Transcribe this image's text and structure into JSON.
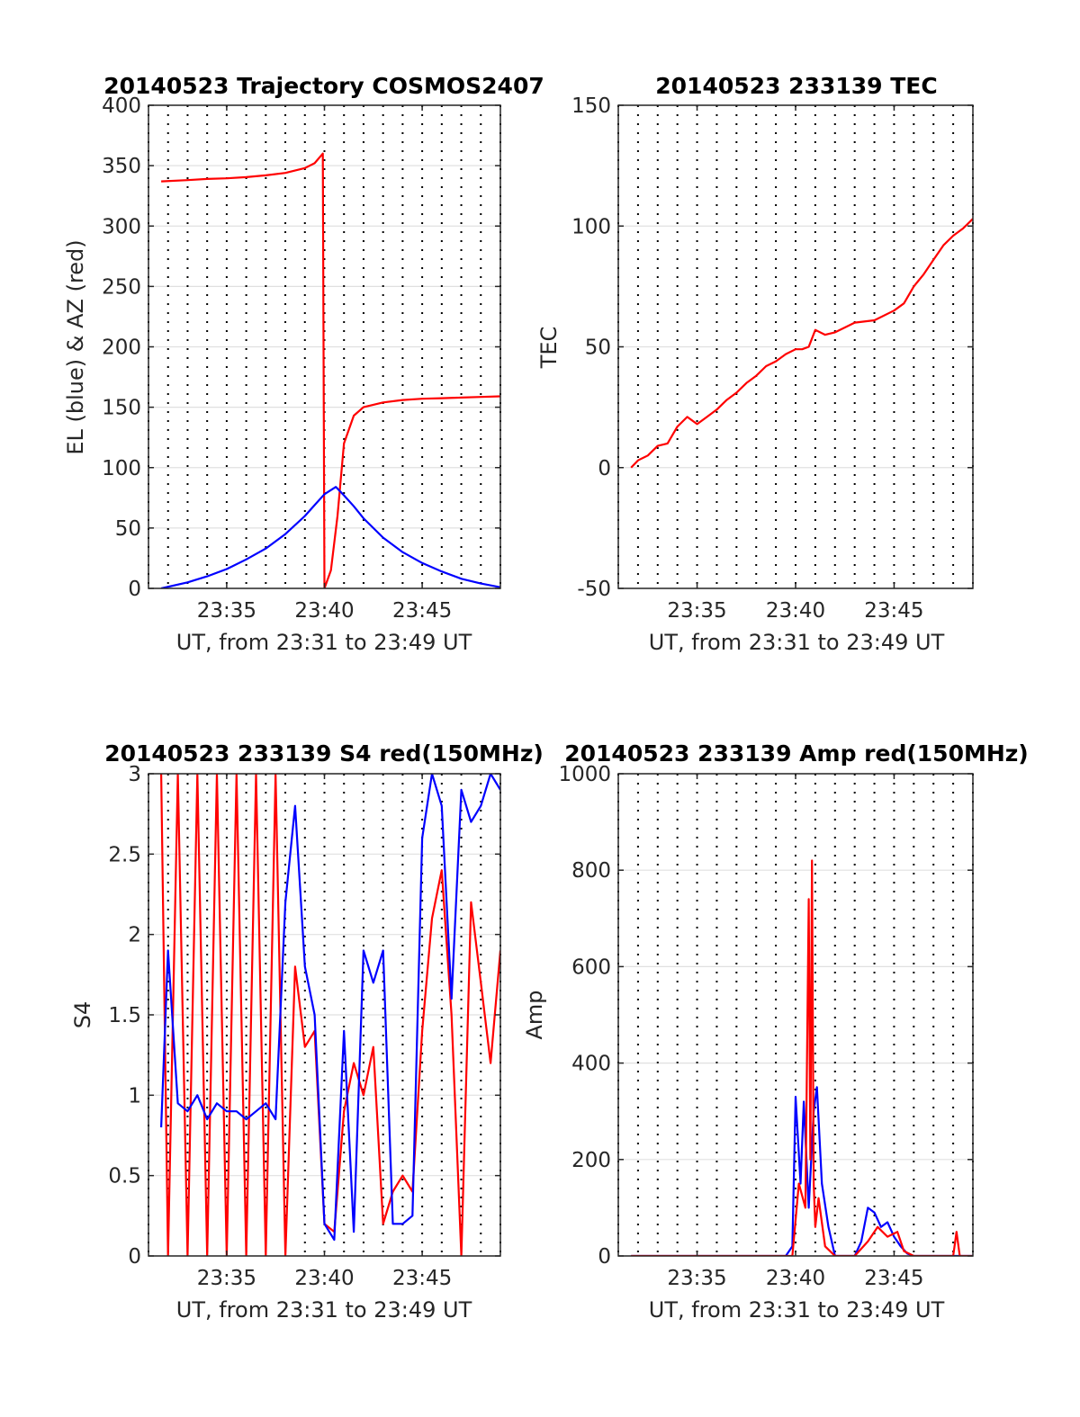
{
  "colors": {
    "el": "#0000ff",
    "az": "#ff0000",
    "axis": "#262626",
    "grid": "#e0e0e0",
    "vgrid": "#000000"
  },
  "chart_data": [
    {
      "id": "trajectory",
      "type": "line",
      "title": "20140523 Trajectory COSMOS2407",
      "xlabel": "UT, from 23:31 to 23:49 UT",
      "ylabel": "EL (blue) & AZ (red)",
      "xlim": [
        "23:31",
        "23:49"
      ],
      "ylim": [
        0,
        400
      ],
      "yticks": [
        "0",
        "50",
        "100",
        "150",
        "200",
        "250",
        "300",
        "350",
        "400"
      ],
      "xticks": [
        "23:35",
        "23:40",
        "23:45"
      ],
      "grid": true,
      "series": [
        {
          "color": "red",
          "x": [
            "23:31:39",
            "23:33",
            "23:34",
            "23:35",
            "23:36",
            "23:37",
            "23:38",
            "23:39",
            "23:39:30",
            "23:39:55",
            "23:40:00",
            "23:40:20",
            "23:40:40",
            "23:41:00",
            "23:41:30",
            "23:42",
            "23:43",
            "23:44",
            "23:45",
            "23:46",
            "23:47",
            "23:48",
            "23:49"
          ],
          "y": [
            337,
            338,
            339,
            339.5,
            340.5,
            342,
            344,
            348,
            352,
            360,
            0,
            15,
            60,
            120,
            143,
            150,
            154,
            156,
            157,
            157.5,
            158,
            158.5,
            159
          ]
        },
        {
          "color": "blue",
          "x": [
            "23:31:39",
            "23:33",
            "23:34",
            "23:35",
            "23:36",
            "23:37",
            "23:38",
            "23:39",
            "23:39:30",
            "23:40",
            "23:40:35",
            "23:41",
            "23:41:30",
            "23:42",
            "23:43",
            "23:44",
            "23:45",
            "23:46",
            "23:47",
            "23:48",
            "23:49"
          ],
          "y": [
            0,
            5,
            10,
            16,
            24,
            33,
            45,
            60,
            69,
            78,
            84,
            77,
            68,
            58,
            42,
            30,
            21,
            14,
            8,
            4,
            1
          ]
        }
      ]
    },
    {
      "id": "tec",
      "type": "line",
      "title": "20140523 233139 TEC",
      "xlabel": "UT, from 23:31 to 23:49 UT",
      "ylabel": "TEC",
      "xlim": [
        "23:31",
        "23:49"
      ],
      "ylim": [
        -50,
        150
      ],
      "yticks": [
        "-50",
        "0",
        "50",
        "100",
        "150"
      ],
      "xticks": [
        "23:35",
        "23:40",
        "23:45"
      ],
      "grid": true,
      "series": [
        {
          "color": "red",
          "x": [
            "23:31:39",
            "23:32",
            "23:32:30",
            "23:33",
            "23:33:30",
            "23:34",
            "23:34:30",
            "23:35",
            "23:35:30",
            "23:36",
            "23:36:30",
            "23:37",
            "23:37:30",
            "23:38",
            "23:38:30",
            "23:39",
            "23:39:30",
            "23:40",
            "23:40:20",
            "23:40:40",
            "23:41",
            "23:41:30",
            "23:42",
            "23:43",
            "23:44",
            "23:45",
            "23:45:30",
            "23:46",
            "23:46:30",
            "23:47",
            "23:47:30",
            "23:48",
            "23:48:30",
            "23:49"
          ],
          "y": [
            0,
            3,
            5,
            9,
            10,
            17,
            21,
            18,
            21,
            24,
            28,
            31,
            35,
            38,
            42,
            44,
            47,
            49,
            49,
            50,
            57,
            55,
            56,
            60,
            61,
            65,
            68,
            75,
            80,
            86,
            92,
            96,
            99,
            103
          ]
        }
      ]
    },
    {
      "id": "s4",
      "type": "line",
      "title": "20140523 233139 S4 red(150MHz)",
      "xlabel": "UT, from 23:31 to 23:49 UT",
      "ylabel": "S4",
      "xlim": [
        "23:31",
        "23:49"
      ],
      "ylim": [
        0,
        3
      ],
      "yticks": [
        "0",
        "0.5",
        "1",
        "1.5",
        "2",
        "2.5",
        "3"
      ],
      "xticks": [
        "23:35",
        "23:40",
        "23:45"
      ],
      "grid": true,
      "series": [
        {
          "color": "red",
          "x": [
            "23:31:39",
            "23:32",
            "23:32:30",
            "23:33",
            "23:33:30",
            "23:34",
            "23:34:30",
            "23:35",
            "23:35:30",
            "23:36",
            "23:36:30",
            "23:37",
            "23:37:30",
            "23:38",
            "23:38:30",
            "23:39",
            "23:39:30",
            "23:40",
            "23:40:30",
            "23:41",
            "23:41:30",
            "23:42",
            "23:42:30",
            "23:43",
            "23:43:30",
            "23:44",
            "23:44:30",
            "23:45",
            "23:45:30",
            "23:46",
            "23:46:30",
            "23:47",
            "23:47:30",
            "23:48",
            "23:48:30",
            "23:49"
          ],
          "y": [
            3,
            0,
            3,
            0,
            3,
            0,
            3,
            0,
            3,
            0,
            3,
            0,
            3,
            0,
            1.8,
            1.3,
            1.4,
            0.2,
            0.15,
            0.9,
            1.2,
            1.0,
            1.3,
            0.2,
            0.4,
            0.5,
            0.4,
            1.4,
            2.1,
            2.4,
            1.5,
            0,
            2.2,
            1.7,
            1.2,
            1.9
          ]
        },
        {
          "color": "blue",
          "x": [
            "23:31:39",
            "23:32",
            "23:32:30",
            "23:33",
            "23:33:30",
            "23:34",
            "23:34:30",
            "23:35",
            "23:35:30",
            "23:36",
            "23:36:30",
            "23:37",
            "23:37:30",
            "23:38",
            "23:38:30",
            "23:39",
            "23:39:30",
            "23:40",
            "23:40:30",
            "23:41",
            "23:41:30",
            "23:42",
            "23:42:30",
            "23:43",
            "23:43:30",
            "23:44",
            "23:44:30",
            "23:45",
            "23:45:30",
            "23:46",
            "23:46:30",
            "23:47",
            "23:47:30",
            "23:48",
            "23:48:30",
            "23:49"
          ],
          "y": [
            0.8,
            1.9,
            0.95,
            0.9,
            1.0,
            0.85,
            0.95,
            0.9,
            0.9,
            0.85,
            0.9,
            0.95,
            0.85,
            2.2,
            2.8,
            1.8,
            1.5,
            0.2,
            0.1,
            1.4,
            0.15,
            1.9,
            1.7,
            1.9,
            0.2,
            0.2,
            0.25,
            2.6,
            3.0,
            2.8,
            1.6,
            2.9,
            2.7,
            2.8,
            3.0,
            2.9
          ]
        }
      ]
    },
    {
      "id": "amp",
      "type": "line",
      "title": "20140523 233139 Amp red(150MHz)",
      "xlabel": "UT, from 23:31 to 23:49 UT",
      "ylabel": "Amp",
      "xlim": [
        "23:31",
        "23:49"
      ],
      "ylim": [
        0,
        1000
      ],
      "yticks": [
        "0",
        "200",
        "400",
        "600",
        "800",
        "1000"
      ],
      "xticks": [
        "23:35",
        "23:40",
        "23:45"
      ],
      "grid": true,
      "series": [
        {
          "color": "blue",
          "x": [
            "23:31:39",
            "23:35",
            "23:39:30",
            "23:39:50",
            "23:40:00",
            "23:40:15",
            "23:40:25",
            "23:40:40",
            "23:40:55",
            "23:41:05",
            "23:41:20",
            "23:41:40",
            "23:42",
            "23:43",
            "23:43:20",
            "23:43:40",
            "23:44:00",
            "23:44:20",
            "23:44:40",
            "23:45:00",
            "23:45:20",
            "23:45:40",
            "23:46",
            "23:47",
            "23:48",
            "23:49"
          ],
          "y": [
            0,
            0,
            0,
            20,
            330,
            150,
            320,
            100,
            300,
            350,
            150,
            60,
            0,
            0,
            30,
            100,
            90,
            60,
            70,
            40,
            20,
            5,
            0,
            0,
            0,
            0
          ]
        },
        {
          "color": "red",
          "x": [
            "23:31:39",
            "23:39:30",
            "23:39:50",
            "23:40:10",
            "23:40:30",
            "23:40:40",
            "23:40:45",
            "23:40:50",
            "23:40:55",
            "23:41:00",
            "23:41:10",
            "23:41:30",
            "23:42",
            "23:43",
            "23:43:40",
            "23:44:10",
            "23:44:40",
            "23:45:10",
            "23:45:30",
            "23:46",
            "23:48:00",
            "23:48:10",
            "23:48:20",
            "23:49"
          ],
          "y": [
            0,
            0,
            0,
            150,
            100,
            740,
            200,
            820,
            150,
            60,
            120,
            20,
            0,
            0,
            30,
            60,
            40,
            50,
            10,
            0,
            0,
            50,
            0,
            0
          ]
        }
      ]
    }
  ]
}
